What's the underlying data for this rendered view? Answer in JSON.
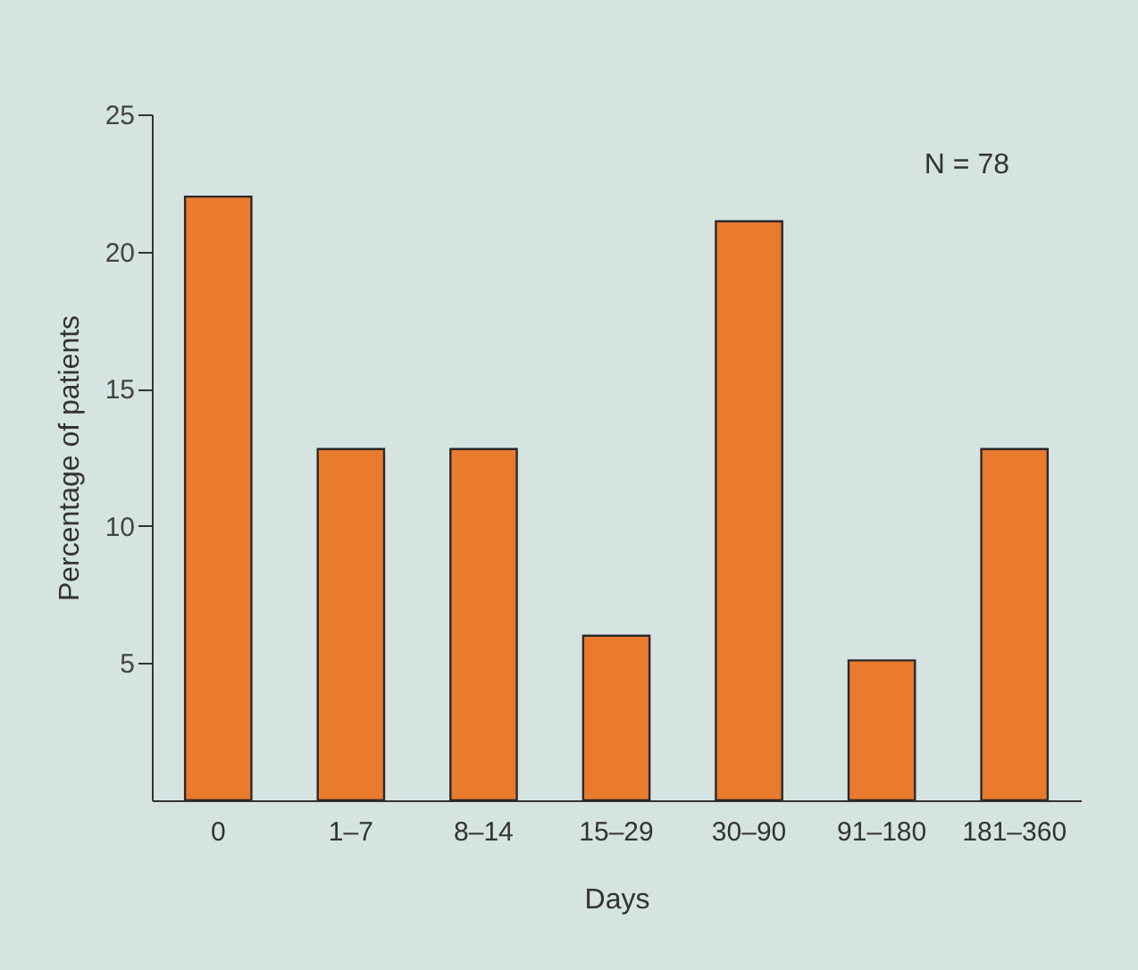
{
  "chart_data": {
    "type": "bar",
    "xlabel": "Days",
    "ylabel": "Percentage of patients",
    "categories": [
      "0",
      "1–7",
      "8–14",
      "15–29",
      "30–90",
      "91–180",
      "181–360"
    ],
    "values": [
      22,
      12.8,
      12.8,
      6,
      21.1,
      5.1,
      12.8
    ],
    "color": "#e97a2e",
    "ylim": [
      0,
      25
    ],
    "yticks": [
      5,
      10,
      15,
      20,
      25
    ],
    "grid": false,
    "annotations": [
      "N = 78"
    ]
  }
}
